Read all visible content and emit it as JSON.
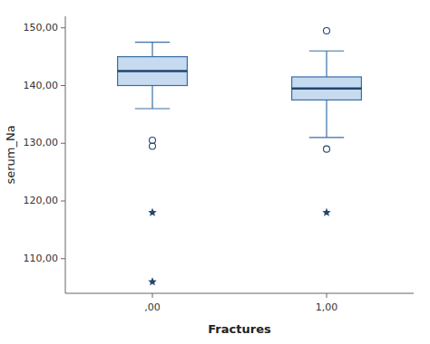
{
  "chart_data": {
    "type": "box",
    "xlabel": "Fractures",
    "ylabel": "serum_Na",
    "categories": [
      ",00",
      "1,00"
    ],
    "boxes": [
      {
        "q1": 140.0,
        "median": 142.5,
        "q3": 145.0,
        "whisker_low": 136.0,
        "whisker_high": 147.5,
        "outliers": [
          130.5,
          129.5
        ],
        "extremes": [
          118.0,
          106.0
        ]
      },
      {
        "q1": 137.5,
        "median": 139.5,
        "q3": 141.5,
        "whisker_low": 131.0,
        "whisker_high": 146.0,
        "outliers": [
          129.0,
          149.5
        ],
        "extremes": [
          118.0
        ]
      }
    ],
    "ylim": [
      104,
      152
    ],
    "yticks": [
      {
        "value": 110,
        "label": "110,00"
      },
      {
        "value": 120,
        "label": "120,00"
      },
      {
        "value": 130,
        "label": "130,00"
      },
      {
        "value": 140,
        "label": "140,00"
      },
      {
        "value": 150,
        "label": "150,00"
      }
    ]
  }
}
